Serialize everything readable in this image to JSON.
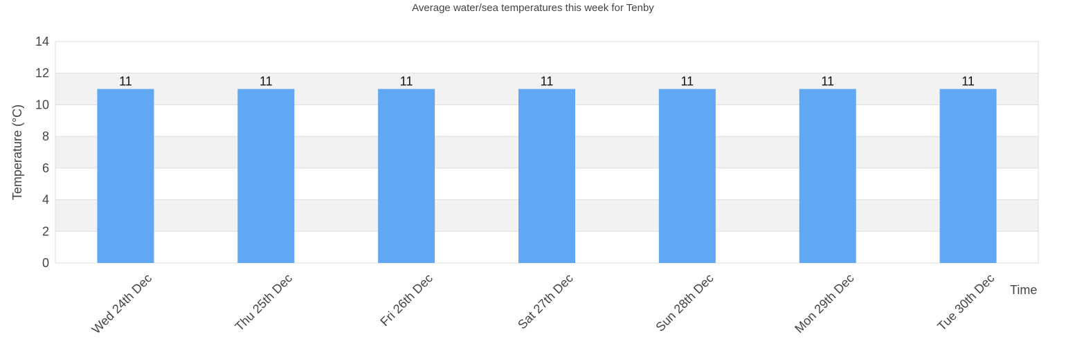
{
  "chart_data": {
    "type": "bar",
    "title": "Average water/sea temperatures this week for Tenby",
    "xlabel": "Time",
    "ylabel": "Temperature (°C)",
    "ylim": [
      0,
      14
    ],
    "yticks": [
      0,
      2,
      4,
      6,
      8,
      10,
      12,
      14
    ],
    "grid": true,
    "legend": null,
    "categories": [
      "Wed 24th Dec",
      "Thu 25th Dec",
      "Fri 26th Dec",
      "Sat 27th Dec",
      "Sun 28th Dec",
      "Mon 29th Dec",
      "Tue 30th Dec"
    ],
    "values": [
      11,
      11,
      11,
      11,
      11,
      11,
      11
    ],
    "data_labels": [
      "11",
      "11",
      "11",
      "11",
      "11",
      "11",
      "11"
    ],
    "bar_color": "#60a8f4",
    "band_color": "#f2f2f2",
    "grid_color": "#dddddd"
  }
}
